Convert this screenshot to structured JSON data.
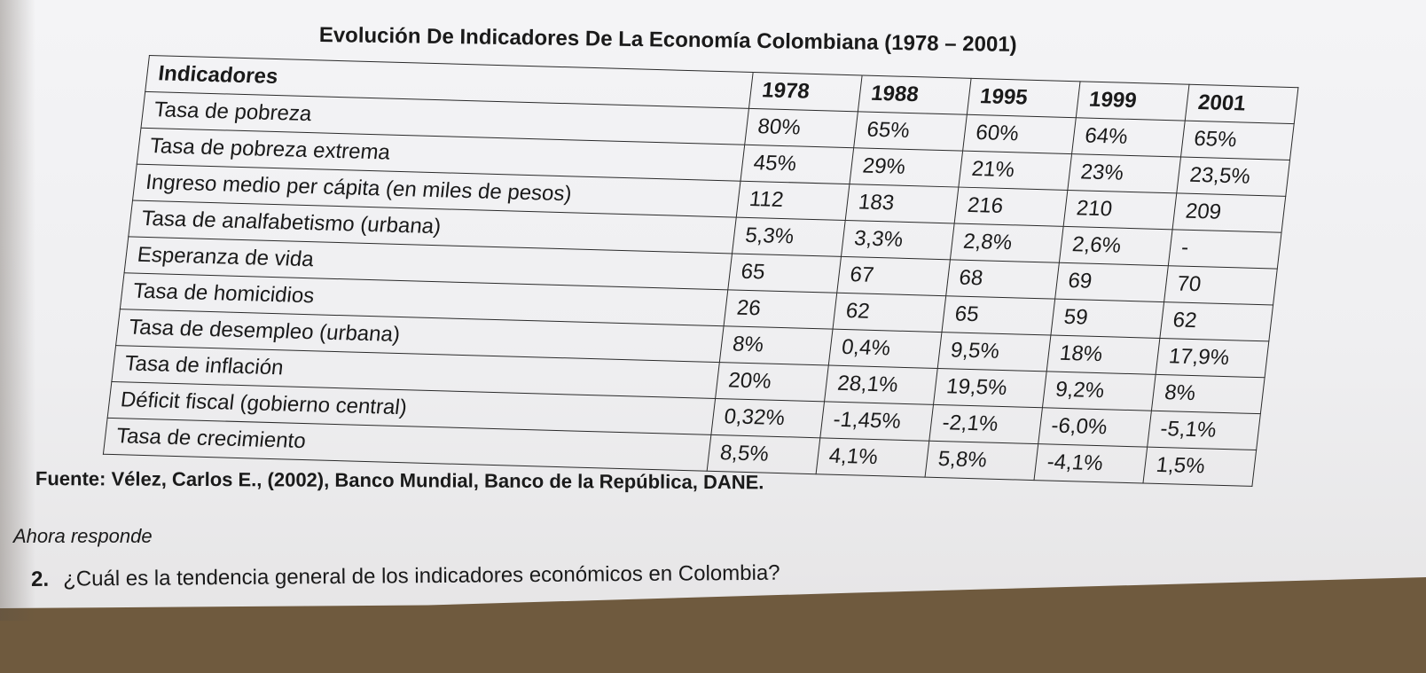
{
  "title": "Evolución De Indicadores De La Economía Colombiana (1978 – 2001)",
  "table": {
    "headers": [
      "Indicadores",
      "1978",
      "1988",
      "1995",
      "1999",
      "2001"
    ],
    "rows": [
      {
        "label": "Tasa de pobreza",
        "values": [
          "80%",
          "65%",
          "60%",
          "64%",
          "65%"
        ]
      },
      {
        "label": "Tasa de pobreza extrema",
        "values": [
          "45%",
          "29%",
          "21%",
          "23%",
          "23,5%"
        ]
      },
      {
        "label": "Ingreso medio per cápita (en miles de pesos)",
        "values": [
          "112",
          "183",
          "216",
          "210",
          "209"
        ]
      },
      {
        "label": "Tasa de analfabetismo (urbana)",
        "values": [
          "5,3%",
          "3,3%",
          "2,8%",
          "2,6%",
          "-"
        ]
      },
      {
        "label": "Esperanza de vida",
        "values": [
          "65",
          "67",
          "68",
          "69",
          "70"
        ]
      },
      {
        "label": "Tasa de homicidios",
        "values": [
          "26",
          "62",
          "65",
          "59",
          "62"
        ]
      },
      {
        "label": "Tasa de desempleo (urbana)",
        "values": [
          "8%",
          "0,4%",
          "9,5%",
          "18%",
          "17,9%"
        ]
      },
      {
        "label": "Tasa de inflación",
        "values": [
          "20%",
          "28,1%",
          "19,5%",
          "9,2%",
          "8%"
        ]
      },
      {
        "label": "Déficit fiscal (gobierno central)",
        "values": [
          "0,32%",
          "-1,45%",
          "-2,1%",
          "-6,0%",
          "-5,1%"
        ]
      },
      {
        "label": "Tasa de crecimiento",
        "values": [
          "8,5%",
          "4,1%",
          "5,8%",
          "-4,1%",
          "1,5%"
        ]
      }
    ]
  },
  "source": "Fuente: Vélez, Carlos E., (2002), Banco Mundial, Banco de la República, DANE.",
  "respond_label": "Ahora responde",
  "question": {
    "number": "2.",
    "text": "¿Cuál es la tendencia general de los indicadores económicos   en Colombia?"
  }
}
